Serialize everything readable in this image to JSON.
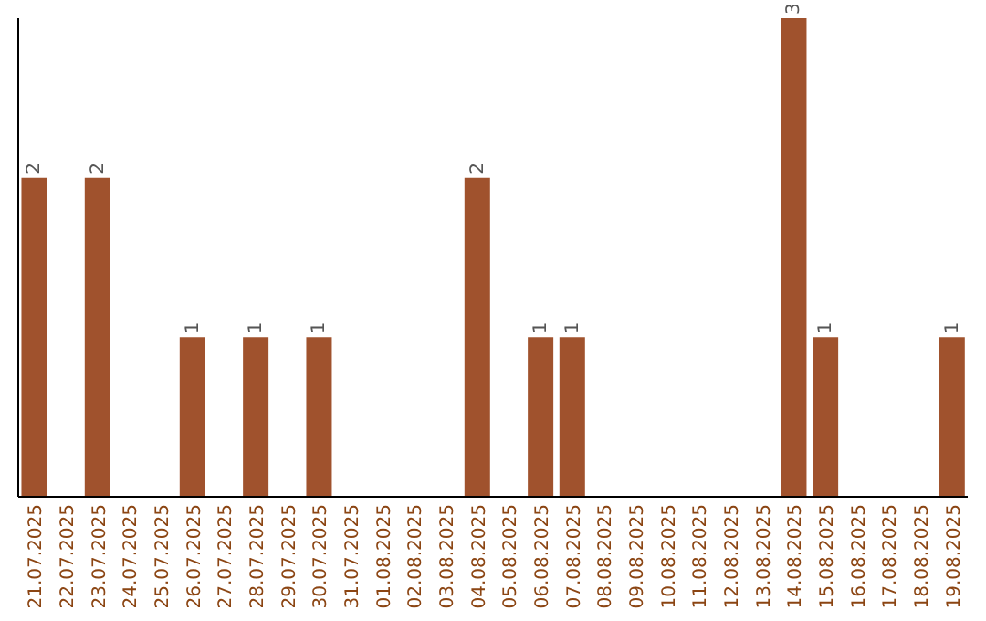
{
  "chart_data": {
    "type": "bar",
    "categories": [
      "21.07.2025",
      "22.07.2025",
      "23.07.2025",
      "24.07.2025",
      "25.07.2025",
      "26.07.2025",
      "27.07.2025",
      "28.07.2025",
      "29.07.2025",
      "30.07.2025",
      "31.07.2025",
      "01.08.2025",
      "02.08.2025",
      "03.08.2025",
      "04.08.2025",
      "05.08.2025",
      "06.08.2025",
      "07.08.2025",
      "08.08.2025",
      "09.08.2025",
      "10.08.2025",
      "11.08.2025",
      "12.08.2025",
      "13.08.2025",
      "14.08.2025",
      "15.08.2025",
      "16.08.2025",
      "17.08.2025",
      "18.08.2025",
      "19.08.2025"
    ],
    "values": [
      2,
      0,
      2,
      0,
      0,
      1,
      0,
      1,
      0,
      1,
      0,
      0,
      0,
      0,
      2,
      0,
      1,
      1,
      0,
      0,
      0,
      0,
      0,
      0,
      3,
      1,
      0,
      0,
      0,
      1
    ],
    "value_labels": [
      "2",
      null,
      "2",
      null,
      null,
      "1",
      null,
      "1",
      null,
      "1",
      null,
      null,
      null,
      null,
      "2",
      null,
      "1",
      "1",
      null,
      null,
      null,
      null,
      null,
      null,
      "3",
      "1",
      null,
      null,
      null,
      "1"
    ],
    "color": "#a0522d",
    "grid": false,
    "tick_labels": "x"
  }
}
